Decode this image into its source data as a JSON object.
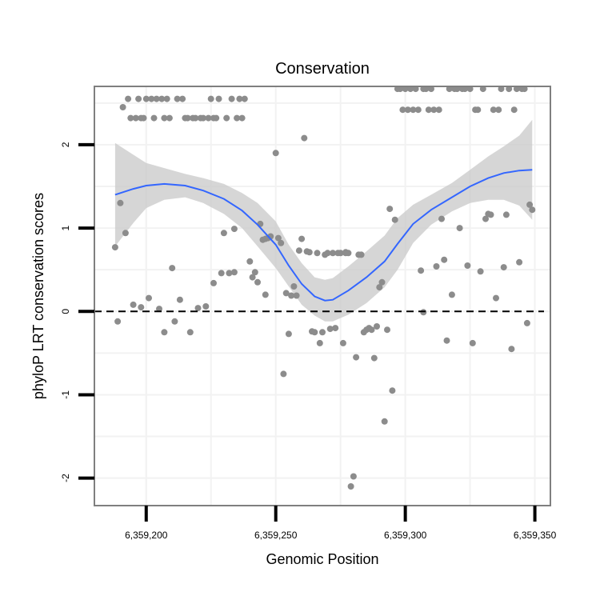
{
  "chart_data": {
    "type": "scatter",
    "title": "Conservation",
    "xlabel": "Genomic Position",
    "ylabel": "phyloP LRT conservation scores",
    "xlim": [
      6359180,
      6359356
    ],
    "ylim": [
      -2.33,
      2.7
    ],
    "x_ticks": [
      {
        "value": 6359200,
        "label": "6,359,200"
      },
      {
        "value": 6359250,
        "label": "6,359,250"
      },
      {
        "value": 6359300,
        "label": "6,359,300"
      },
      {
        "value": 6359350,
        "label": "6,359,350"
      }
    ],
    "y_ticks": [
      {
        "value": -2,
        "label": "-2"
      },
      {
        "value": -1,
        "label": "-1"
      },
      {
        "value": 0,
        "label": "0"
      },
      {
        "value": 1,
        "label": "1"
      },
      {
        "value": 2,
        "label": "2"
      }
    ],
    "reference_line": {
      "y": 0,
      "style": "dashed"
    },
    "grid": true,
    "colors": {
      "points": "#8c8c8c",
      "smooth": "#3366ff",
      "ribbon": "#c8c8c8",
      "panel_border": "#7f7f7f",
      "grid": "#f2f2f2"
    },
    "points": [
      [
        6359188,
        0.77
      ],
      [
        6359189,
        -0.12
      ],
      [
        6359190,
        1.3
      ],
      [
        6359191,
        2.45
      ],
      [
        6359192,
        0.94
      ],
      [
        6359193,
        2.55
      ],
      [
        6359194,
        2.32
      ],
      [
        6359195,
        0.08
      ],
      [
        6359196,
        2.32
      ],
      [
        6359197,
        2.55
      ],
      [
        6359198,
        2.32
      ],
      [
        6359198,
        0.05
      ],
      [
        6359199,
        2.32
      ],
      [
        6359200,
        2.55
      ],
      [
        6359201,
        0.16
      ],
      [
        6359202,
        2.55
      ],
      [
        6359203,
        2.32
      ],
      [
        6359204,
        2.55
      ],
      [
        6359205,
        0.03
      ],
      [
        6359206,
        2.55
      ],
      [
        6359207,
        2.32
      ],
      [
        6359207,
        -0.25
      ],
      [
        6359208,
        2.55
      ],
      [
        6359209,
        2.32
      ],
      [
        6359210,
        0.52
      ],
      [
        6359211,
        -0.12
      ],
      [
        6359212,
        2.55
      ],
      [
        6359213,
        0.14
      ],
      [
        6359214,
        2.55
      ],
      [
        6359215,
        2.32
      ],
      [
        6359216,
        2.32
      ],
      [
        6359217,
        -0.25
      ],
      [
        6359218,
        2.32
      ],
      [
        6359219,
        2.32
      ],
      [
        6359220,
        0.04
      ],
      [
        6359221,
        2.32
      ],
      [
        6359222,
        2.32
      ],
      [
        6359223,
        0.06
      ],
      [
        6359224,
        2.32
      ],
      [
        6359225,
        2.55
      ],
      [
        6359226,
        2.32
      ],
      [
        6359226,
        0.34
      ],
      [
        6359227,
        2.32
      ],
      [
        6359228,
        2.55
      ],
      [
        6359229,
        0.46
      ],
      [
        6359230,
        0.94
      ],
      [
        6359231,
        2.32
      ],
      [
        6359232,
        0.46
      ],
      [
        6359233,
        2.55
      ],
      [
        6359234,
        0.99
      ],
      [
        6359234,
        0.47
      ],
      [
        6359235,
        2.32
      ],
      [
        6359236,
        2.55
      ],
      [
        6359237,
        2.32
      ],
      [
        6359238,
        2.55
      ],
      [
        6359240,
        0.6
      ],
      [
        6359241,
        0.41
      ],
      [
        6359242,
        0.47
      ],
      [
        6359243,
        0.35
      ],
      [
        6359244,
        1.05
      ],
      [
        6359245,
        0.86
      ],
      [
        6359246,
        0.2
      ],
      [
        6359247,
        0.88
      ],
      [
        6359248,
        0.9
      ],
      [
        6359250,
        1.9
      ],
      [
        6359251,
        0.88
      ],
      [
        6359252,
        0.82
      ],
      [
        6359253,
        -0.75
      ],
      [
        6359254,
        0.22
      ],
      [
        6359255,
        -0.27
      ],
      [
        6359256,
        0.19
      ],
      [
        6359257,
        0.3
      ],
      [
        6359258,
        0.19
      ],
      [
        6359259,
        0.73
      ],
      [
        6359260,
        0.87
      ],
      [
        6359261,
        2.08
      ],
      [
        6359262,
        0.72
      ],
      [
        6359263,
        0.71
      ],
      [
        6359264,
        -0.24
      ],
      [
        6359265,
        -0.25
      ],
      [
        6359266,
        0.7
      ],
      [
        6359267,
        -0.38
      ],
      [
        6359268,
        -0.25
      ],
      [
        6359269,
        0.68
      ],
      [
        6359270,
        0.7
      ],
      [
        6359271,
        -0.21
      ],
      [
        6359272,
        0.7
      ],
      [
        6359273,
        -0.2
      ],
      [
        6359274,
        0.7
      ],
      [
        6359275,
        0.7
      ],
      [
        6359276,
        -0.38
      ],
      [
        6359277,
        0.7
      ],
      [
        6359278,
        0.7
      ],
      [
        6359279,
        -2.1
      ],
      [
        6359280,
        -1.98
      ],
      [
        6359281,
        -0.55
      ],
      [
        6359282,
        0.68
      ],
      [
        6359283,
        0.68
      ],
      [
        6359284,
        -0.25
      ],
      [
        6359285,
        -0.22
      ],
      [
        6359286,
        -0.2
      ],
      [
        6359287,
        -0.22
      ],
      [
        6359288,
        -0.56
      ],
      [
        6359289,
        -0.18
      ],
      [
        6359290,
        0.29
      ],
      [
        6359291,
        0.35
      ],
      [
        6359292,
        -1.32
      ],
      [
        6359293,
        -0.22
      ],
      [
        6359294,
        1.23
      ],
      [
        6359295,
        -0.95
      ],
      [
        6359296,
        1.1
      ],
      [
        6359297,
        2.67
      ],
      [
        6359298,
        2.67
      ],
      [
        6359299,
        2.42
      ],
      [
        6359300,
        2.67
      ],
      [
        6359301,
        2.42
      ],
      [
        6359302,
        2.67
      ],
      [
        6359303,
        2.42
      ],
      [
        6359304,
        2.67
      ],
      [
        6359305,
        2.42
      ],
      [
        6359306,
        0.49
      ],
      [
        6359307,
        2.67
      ],
      [
        6359308,
        2.67
      ],
      [
        6359309,
        2.42
      ],
      [
        6359310,
        2.67
      ],
      [
        6359311,
        2.42
      ],
      [
        6359312,
        0.54
      ],
      [
        6359313,
        2.42
      ],
      [
        6359314,
        1.11
      ],
      [
        6359315,
        0.62
      ],
      [
        6359316,
        -0.35
      ],
      [
        6359317,
        2.67
      ],
      [
        6359318,
        0.2
      ],
      [
        6359319,
        2.67
      ],
      [
        6359320,
        2.67
      ],
      [
        6359321,
        1.0
      ],
      [
        6359322,
        2.67
      ],
      [
        6359323,
        2.67
      ],
      [
        6359324,
        0.55
      ],
      [
        6359325,
        2.67
      ],
      [
        6359326,
        -0.38
      ],
      [
        6359327,
        2.42
      ],
      [
        6359328,
        2.42
      ],
      [
        6359329,
        0.48
      ],
      [
        6359330,
        2.67
      ],
      [
        6359331,
        1.11
      ],
      [
        6359332,
        1.17
      ],
      [
        6359333,
        1.16
      ],
      [
        6359334,
        2.42
      ],
      [
        6359335,
        0.16
      ],
      [
        6359336,
        2.42
      ],
      [
        6359337,
        2.67
      ],
      [
        6359338,
        0.53
      ],
      [
        6359339,
        1.16
      ],
      [
        6359340,
        2.67
      ],
      [
        6359341,
        -0.45
      ],
      [
        6359342,
        2.42
      ],
      [
        6359343,
        2.67
      ],
      [
        6359344,
        0.59
      ],
      [
        6359345,
        2.67
      ],
      [
        6359346,
        2.67
      ],
      [
        6359347,
        -0.14
      ],
      [
        6359348,
        1.28
      ],
      [
        6359349,
        1.22
      ],
      [
        6359307,
        -0.01
      ],
      [
        6359246,
        0.87
      ],
      [
        6359277,
        0.71
      ]
    ],
    "smooth": {
      "x": [
        6359188,
        6359195,
        6359200,
        6359207,
        6359215,
        6359222,
        6359230,
        6359237,
        6359243,
        6359250,
        6359255,
        6359260,
        6359265,
        6359269,
        6359272,
        6359278,
        6359285,
        6359292,
        6359297,
        6359303,
        6359310,
        6359318,
        6359325,
        6359332,
        6359338,
        6359344,
        6359349
      ],
      "y": [
        1.4,
        1.47,
        1.51,
        1.53,
        1.51,
        1.45,
        1.35,
        1.21,
        1.04,
        0.8,
        0.55,
        0.33,
        0.18,
        0.13,
        0.14,
        0.25,
        0.41,
        0.6,
        0.81,
        1.05,
        1.22,
        1.37,
        1.5,
        1.6,
        1.66,
        1.69,
        1.7
      ],
      "lower": [
        0.78,
        1.06,
        1.24,
        1.34,
        1.37,
        1.3,
        1.17,
        1.0,
        0.78,
        0.52,
        0.3,
        0.08,
        -0.05,
        -0.12,
        -0.12,
        -0.04,
        0.1,
        0.29,
        0.5,
        0.82,
        1.04,
        1.2,
        1.3,
        1.34,
        1.34,
        1.27,
        1.1
      ],
      "upper": [
        2.02,
        1.88,
        1.78,
        1.72,
        1.65,
        1.6,
        1.53,
        1.42,
        1.3,
        1.08,
        0.8,
        0.58,
        0.41,
        0.38,
        0.4,
        0.54,
        0.72,
        0.91,
        1.12,
        1.28,
        1.4,
        1.54,
        1.7,
        1.86,
        1.98,
        2.11,
        2.3
      ]
    }
  }
}
